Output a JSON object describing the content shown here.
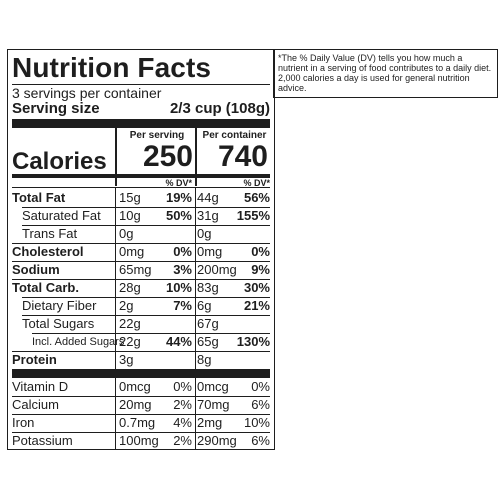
{
  "label": {
    "title": "Nutrition Facts",
    "servings": "3 servings per container",
    "serving_size_label": "Serving size",
    "serving_size_value": "2/3 cup (108g)",
    "per_serving_header": "Per serving",
    "per_container_header": "Per container",
    "calories_label": "Calories",
    "calories_serving": "250",
    "calories_container": "740",
    "dv_header": "% DV*",
    "rows": [
      {
        "name": "Total Fat",
        "amt1": "15g",
        "pct1": "19%",
        "amt2": "44g",
        "pct2": "56%"
      },
      {
        "name": "Saturated Fat",
        "amt1": "10g",
        "pct1": "50%",
        "amt2": "31g",
        "pct2": "155%"
      },
      {
        "name": "Trans Fat",
        "amt1": "0g",
        "pct1": "",
        "amt2": "0g",
        "pct2": ""
      },
      {
        "name": "Cholesterol",
        "amt1": "0mg",
        "pct1": "0%",
        "amt2": "0mg",
        "pct2": "0%"
      },
      {
        "name": "Sodium",
        "amt1": "65mg",
        "pct1": "3%",
        "amt2": "200mg",
        "pct2": "9%"
      },
      {
        "name": "Total Carb.",
        "amt1": "28g",
        "pct1": "10%",
        "amt2": "83g",
        "pct2": "30%"
      },
      {
        "name": "Dietary Fiber",
        "amt1": "2g",
        "pct1": "7%",
        "amt2": "6g",
        "pct2": "21%"
      },
      {
        "name": "Total Sugars",
        "amt1": "22g",
        "pct1": "",
        "amt2": "67g",
        "pct2": ""
      },
      {
        "name": "Incl. Added Sugars",
        "amt1": "22g",
        "pct1": "44%",
        "amt2": "65g",
        "pct2": "130%"
      },
      {
        "name": "Protein",
        "amt1": "3g",
        "pct1": "",
        "amt2": "8g",
        "pct2": ""
      }
    ],
    "vitamins": [
      {
        "name": "Vitamin D",
        "amt1": "0mcg",
        "pct1": "0%",
        "amt2": "0mcg",
        "pct2": "0%"
      },
      {
        "name": "Calcium",
        "amt1": "20mg",
        "pct1": "2%",
        "amt2": "70mg",
        "pct2": "6%"
      },
      {
        "name": "Iron",
        "amt1": "0.7mg",
        "pct1": "4%",
        "amt2": "2mg",
        "pct2": "10%"
      },
      {
        "name": "Potassium",
        "amt1": "100mg",
        "pct1": "2%",
        "amt2": "290mg",
        "pct2": "6%"
      }
    ]
  },
  "footnote": "*The % Daily Value (DV) tells you how much a nutrient in a serving of food contributes to a daily diet. 2,000 calories a day is used for general nutrition advice."
}
